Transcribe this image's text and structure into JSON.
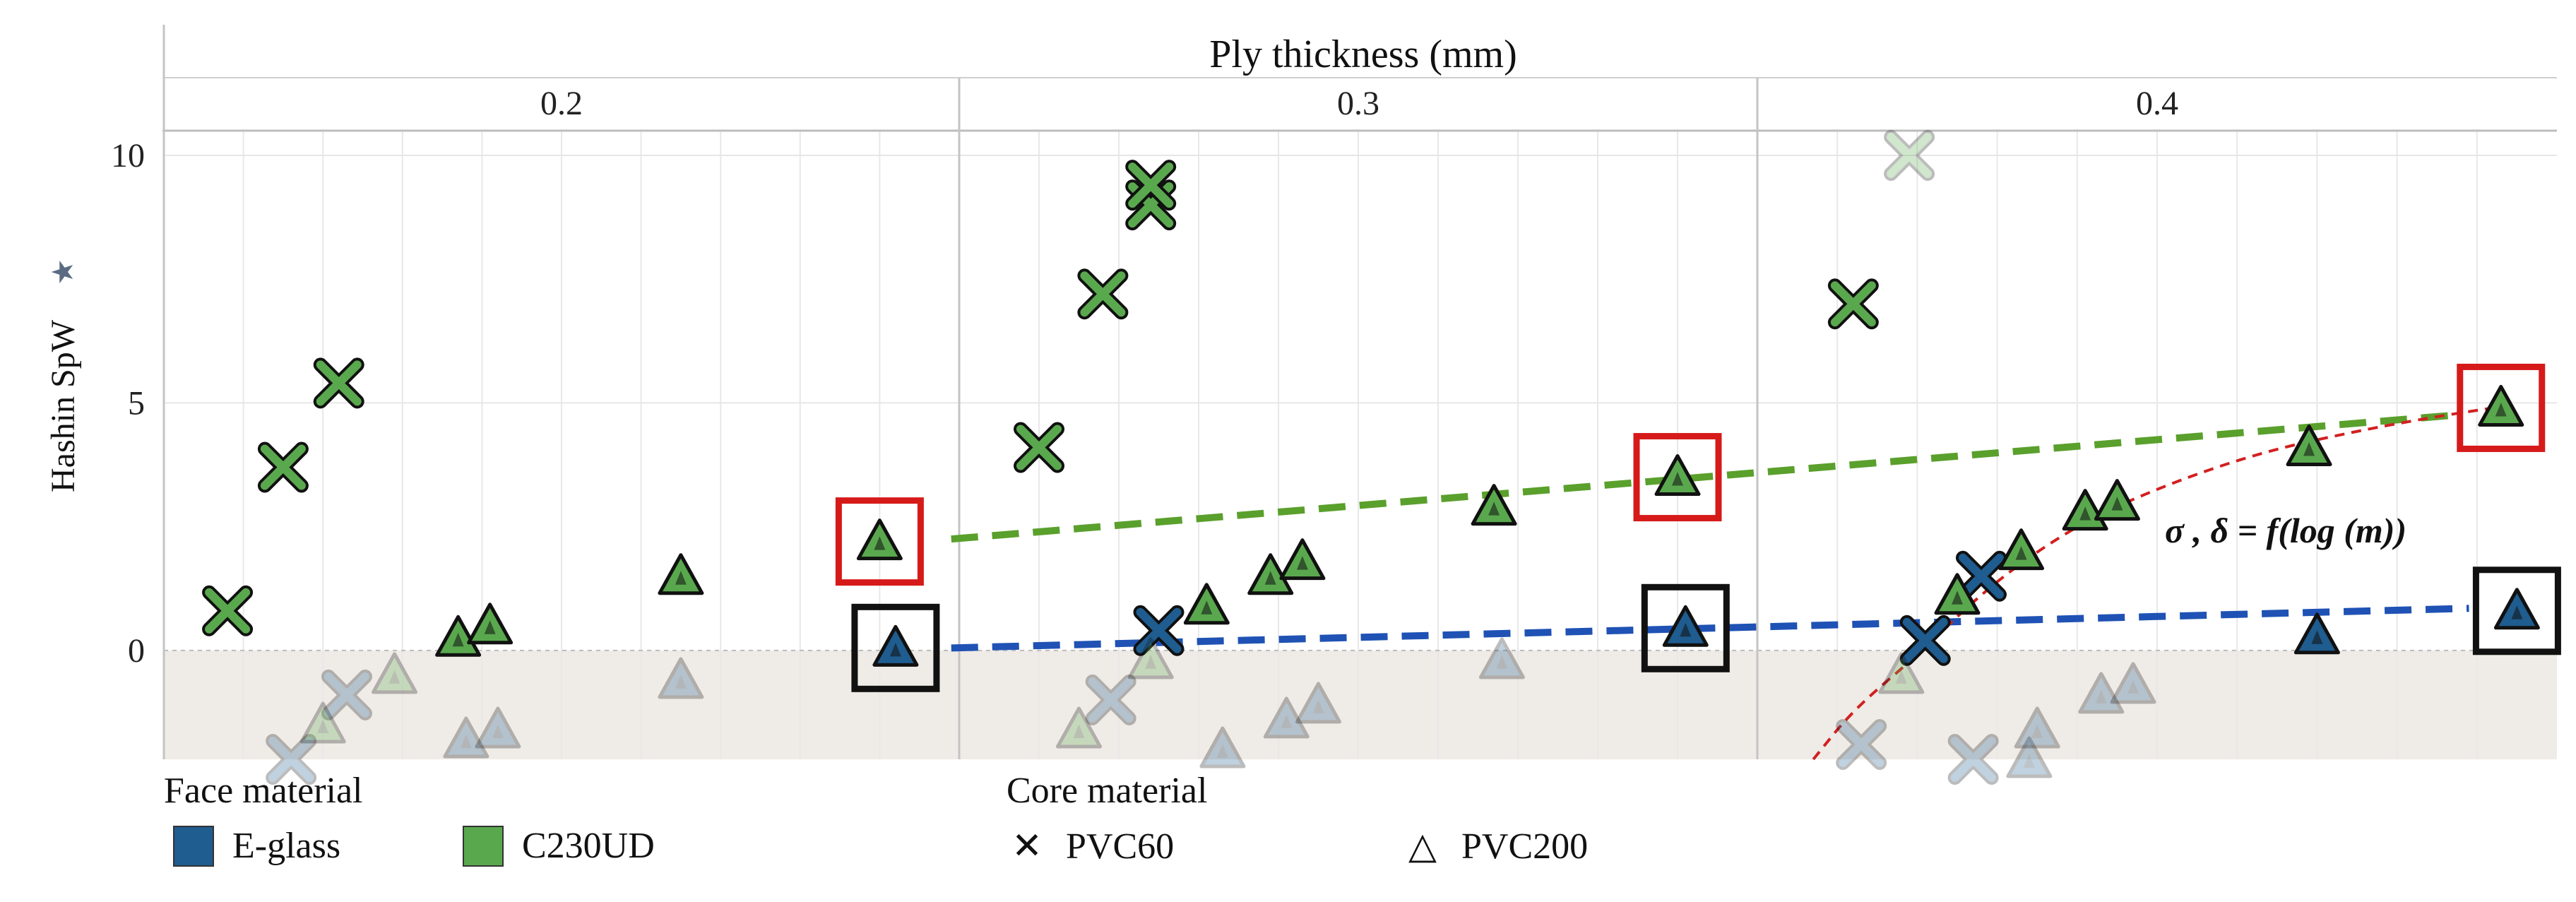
{
  "colors": {
    "e_glass": "#1f5c8f",
    "c230ud": "#5aa84e",
    "trend_green": "#5aa02c",
    "trend_blue": "#1f52b4",
    "highlight_red": "#d61a1a",
    "highlight_black": "#111111",
    "fit_curve": "#d22020",
    "negative_band": "#efebe6"
  },
  "legend": {
    "face_title": "Face material",
    "face_items": [
      {
        "label": "E-glass",
        "color": "#1f5c8f"
      },
      {
        "label": "C230UD",
        "color": "#5aa84e"
      }
    ],
    "core_title": "Core material",
    "core_items": [
      {
        "label": "PVC60",
        "symbol": "✕"
      },
      {
        "label": "PVC200",
        "symbol": "△"
      }
    ]
  },
  "chart_data": {
    "type": "scatter",
    "title": "Ply thickness (mm)",
    "ylabel": "Hashin SpW",
    "ylabel_icon": "star-icon",
    "panels": [
      "0.2",
      "0.3",
      "0.4"
    ],
    "ylim": [
      -2.2,
      10.5
    ],
    "yticks": [
      0,
      5,
      10
    ],
    "grid": true,
    "annotation": "σ , δ = f(log (m))",
    "series": [
      {
        "name": "E-glass PVC60",
        "face": "E-glass",
        "core": "PVC60",
        "marker": "x",
        "color": "#1f5c8f",
        "points": [
          {
            "panel": "0.2",
            "x": 0.16,
            "y": -2.2,
            "faded": true
          },
          {
            "panel": "0.2",
            "x": 0.23,
            "y": -0.9,
            "faded": true
          },
          {
            "panel": "0.3",
            "x": 0.19,
            "y": -1.0,
            "faded": true
          },
          {
            "panel": "0.3",
            "x": 0.25,
            "y": 0.4
          },
          {
            "panel": "0.4",
            "x": 0.13,
            "y": -1.9,
            "faded": true
          },
          {
            "panel": "0.4",
            "x": 0.21,
            "y": 0.2
          },
          {
            "panel": "0.4",
            "x": 0.28,
            "y": 1.5
          },
          {
            "panel": "0.4",
            "x": 0.27,
            "y": -2.2,
            "faded": true
          }
        ]
      },
      {
        "name": "C230UD PVC60",
        "face": "C230UD",
        "core": "PVC60",
        "marker": "x",
        "color": "#5aa84e",
        "points": [
          {
            "panel": "0.2",
            "x": 0.08,
            "y": 0.8
          },
          {
            "panel": "0.2",
            "x": 0.15,
            "y": 3.7
          },
          {
            "panel": "0.2",
            "x": 0.22,
            "y": 5.4
          },
          {
            "panel": "0.3",
            "x": 0.1,
            "y": 4.1
          },
          {
            "panel": "0.3",
            "x": 0.18,
            "y": 7.2
          },
          {
            "panel": "0.3",
            "x": 0.24,
            "y": 9.0
          },
          {
            "panel": "0.3",
            "x": 0.24,
            "y": 9.4
          },
          {
            "panel": "0.4",
            "x": 0.12,
            "y": 7.0
          },
          {
            "panel": "0.4",
            "x": 0.19,
            "y": 10.0,
            "faded": true
          }
        ]
      },
      {
        "name": "E-glass PVC200",
        "face": "E-glass",
        "core": "PVC200",
        "marker": "triangle",
        "color": "#1f5c8f",
        "points": [
          {
            "panel": "0.2",
            "x": 0.38,
            "y": -1.8,
            "faded": true
          },
          {
            "panel": "0.2",
            "x": 0.42,
            "y": -1.6,
            "faded": true
          },
          {
            "panel": "0.2",
            "x": 0.65,
            "y": -0.6,
            "faded": true
          },
          {
            "panel": "0.2",
            "x": 0.92,
            "y": 0.05,
            "box": "black"
          },
          {
            "panel": "0.3",
            "x": 0.33,
            "y": -2.0,
            "faded": true
          },
          {
            "panel": "0.3",
            "x": 0.41,
            "y": -1.4,
            "faded": true
          },
          {
            "panel": "0.3",
            "x": 0.45,
            "y": -1.1,
            "faded": true
          },
          {
            "panel": "0.3",
            "x": 0.68,
            "y": -0.2,
            "faded": true
          },
          {
            "panel": "0.3",
            "x": 0.91,
            "y": 0.45,
            "box": "black"
          },
          {
            "panel": "0.4",
            "x": 0.34,
            "y": -2.2,
            "faded": true
          },
          {
            "panel": "0.4",
            "x": 0.35,
            "y": -1.6,
            "faded": true
          },
          {
            "panel": "0.4",
            "x": 0.43,
            "y": -0.9,
            "faded": true
          },
          {
            "panel": "0.4",
            "x": 0.47,
            "y": -0.7,
            "faded": true
          },
          {
            "panel": "0.4",
            "x": 0.7,
            "y": 0.3
          },
          {
            "panel": "0.4",
            "x": 0.95,
            "y": 0.8,
            "box": "black"
          }
        ]
      },
      {
        "name": "C230UD PVC200",
        "face": "C230UD",
        "core": "PVC200",
        "marker": "triangle",
        "color": "#5aa84e",
        "points": [
          {
            "panel": "0.2",
            "x": 0.2,
            "y": -1.5,
            "faded": true
          },
          {
            "panel": "0.2",
            "x": 0.29,
            "y": -0.5,
            "faded": true
          },
          {
            "panel": "0.2",
            "x": 0.37,
            "y": 0.25
          },
          {
            "panel": "0.2",
            "x": 0.41,
            "y": 0.5
          },
          {
            "panel": "0.2",
            "x": 0.65,
            "y": 1.5
          },
          {
            "panel": "0.2",
            "x": 0.9,
            "y": 2.2,
            "box": "red"
          },
          {
            "panel": "0.3",
            "x": 0.15,
            "y": -1.6,
            "faded": true
          },
          {
            "panel": "0.3",
            "x": 0.24,
            "y": -0.2,
            "faded": true
          },
          {
            "panel": "0.3",
            "x": 0.31,
            "y": 0.9
          },
          {
            "panel": "0.3",
            "x": 0.39,
            "y": 1.5
          },
          {
            "panel": "0.3",
            "x": 0.43,
            "y": 1.8
          },
          {
            "panel": "0.3",
            "x": 0.67,
            "y": 2.9
          },
          {
            "panel": "0.3",
            "x": 0.9,
            "y": 3.5,
            "box": "red"
          },
          {
            "panel": "0.4",
            "x": 0.18,
            "y": -0.5,
            "faded": true
          },
          {
            "panel": "0.4",
            "x": 0.25,
            "y": 1.1
          },
          {
            "panel": "0.4",
            "x": 0.33,
            "y": 2.0
          },
          {
            "panel": "0.4",
            "x": 0.41,
            "y": 2.8
          },
          {
            "panel": "0.4",
            "x": 0.45,
            "y": 3.0
          },
          {
            "panel": "0.4",
            "x": 0.69,
            "y": 4.1
          },
          {
            "panel": "0.4",
            "x": 0.93,
            "y": 4.9,
            "box": "red"
          }
        ]
      }
    ],
    "trend_lines": [
      {
        "color": "#5aa02c",
        "style": "dashed",
        "from": {
          "panel": "0.2",
          "x": 0.99,
          "y": 2.25
        },
        "to": {
          "panel": "0.4",
          "x": 0.87,
          "y": 4.75
        }
      },
      {
        "color": "#1f52b4",
        "style": "dashed",
        "from": {
          "panel": "0.2",
          "x": 0.99,
          "y": 0.05
        },
        "to": {
          "panel": "0.4",
          "x": 0.89,
          "y": 0.85
        }
      }
    ],
    "fit_curve": {
      "color": "#d22020",
      "style": "dashed",
      "panel": "0.4",
      "points": [
        [
          0.07,
          -2.2
        ],
        [
          0.12,
          -1.2
        ],
        [
          0.2,
          -0.1
        ],
        [
          0.27,
          1.0
        ],
        [
          0.34,
          1.9
        ],
        [
          0.42,
          2.7
        ],
        [
          0.52,
          3.4
        ],
        [
          0.63,
          4.0
        ],
        [
          0.74,
          4.4
        ],
        [
          0.84,
          4.7
        ],
        [
          0.92,
          4.9
        ]
      ]
    }
  }
}
